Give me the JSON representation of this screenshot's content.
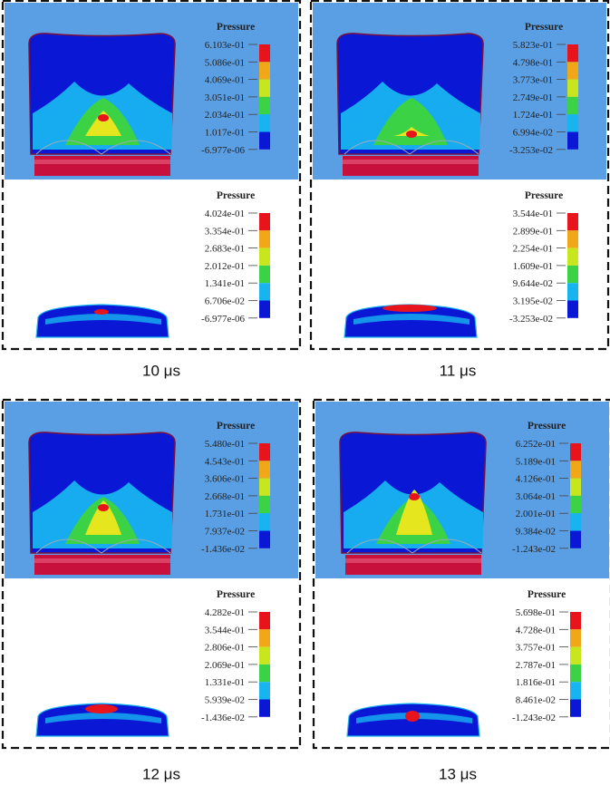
{
  "panels": [
    {
      "caption": "10 μs",
      "top": {
        "title": "Pressure",
        "labels": [
          "6.103e-01",
          "5.086e-01",
          "4.069e-01",
          "3.051e-01",
          "2.034e-01",
          "1.017e-01",
          "-6.977e-06"
        ]
      },
      "bottom": {
        "title": "Pressure",
        "labels": [
          "4.024e-01",
          "3.354e-01",
          "2.683e-01",
          "2.012e-01",
          "1.341e-01",
          "6.706e-02",
          "-6.977e-06"
        ]
      }
    },
    {
      "caption": "11 μs",
      "top": {
        "title": "Pressure",
        "labels": [
          "5.823e-01",
          "4.798e-01",
          "3.773e-01",
          "2.749e-01",
          "1.724e-01",
          "6.994e-02",
          "-3.253e-02"
        ]
      },
      "bottom": {
        "title": "Pressure",
        "labels": [
          "3.544e-01",
          "2.899e-01",
          "2.254e-01",
          "1.609e-01",
          "9.644e-02",
          "3.195e-02",
          "-3.253e-02"
        ]
      }
    },
    {
      "caption": "12 μs",
      "top": {
        "title": "Pressure",
        "labels": [
          "5.480e-01",
          "4.543e-01",
          "3.606e-01",
          "2.668e-01",
          "1.731e-01",
          "7.937e-02",
          "-1.436e-02"
        ]
      },
      "bottom": {
        "title": "Pressure",
        "labels": [
          "4.282e-01",
          "3.544e-01",
          "2.806e-01",
          "2.069e-01",
          "1.331e-01",
          "5.939e-02",
          "-1.436e-02"
        ]
      }
    },
    {
      "caption": "13 μs",
      "top": {
        "title": "Pressure",
        "labels": [
          "6.252e-01",
          "5.189e-01",
          "4.126e-01",
          "3.064e-01",
          "2.001e-01",
          "9.384e-02",
          "-1.243e-02"
        ]
      },
      "bottom": {
        "title": "Pressure",
        "labels": [
          "5.698e-01",
          "4.728e-01",
          "3.757e-01",
          "2.787e-01",
          "1.816e-01",
          "8.461e-02",
          "-1.243e-02"
        ]
      }
    }
  ]
}
